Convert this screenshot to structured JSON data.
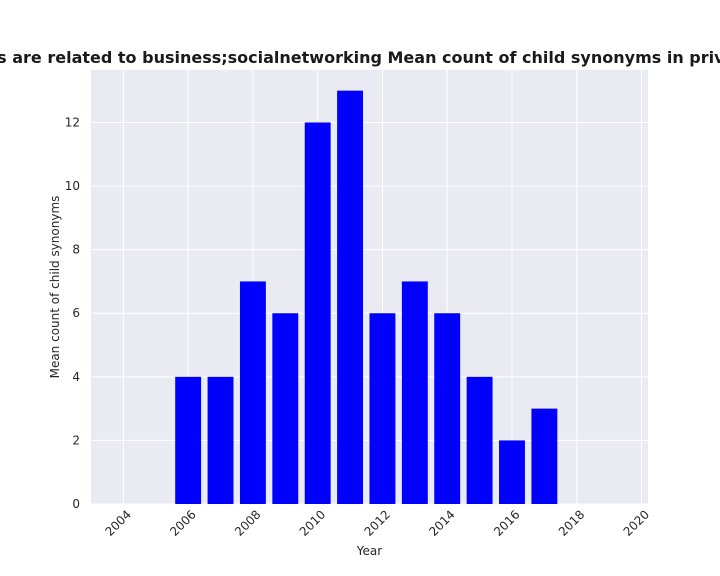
{
  "chart_data": {
    "type": "bar",
    "title": "Categories are related to business;socialnetworking Mean count of child synonyms in privacy policies",
    "xlabel": "Year",
    "ylabel": "Mean count of child synonyms",
    "x": [
      2006,
      2007,
      2008,
      2009,
      2010,
      2011,
      2012,
      2013,
      2014,
      2015,
      2016,
      2017
    ],
    "values": [
      4,
      4,
      7,
      6,
      12,
      13,
      6,
      7,
      6,
      4,
      2,
      3
    ],
    "xlim": [
      2003,
      2020.2
    ],
    "ylim": [
      0,
      13.65
    ],
    "xticks": [
      2004,
      2006,
      2008,
      2010,
      2012,
      2014,
      2016,
      2018,
      2020
    ],
    "yticks": [
      0,
      2,
      4,
      6,
      8,
      10,
      12
    ],
    "bar_color": "#0000ff",
    "background_color": "#eaeaf2",
    "grid_color": "#ffffff",
    "grid": true
  }
}
